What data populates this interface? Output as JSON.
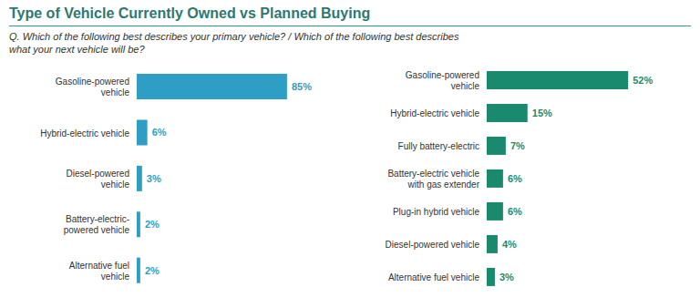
{
  "title": "Type of Vehicle Currently Owned vs Planned Buying",
  "subtitle": "Q. Which of the following best describes your primary vehicle? / Which of the following best describes\nwhat your next vehicle will be?",
  "chart_data": [
    {
      "type": "bar",
      "orientation": "horizontal",
      "categories": [
        "Gasoline-powered\nvehicle",
        "Hybrid-electric vehicle",
        "Diesel-powered\nvehicle",
        "Battery-electric-\npowered vehicle",
        "Alternative fuel\nvehicle"
      ],
      "values": [
        85,
        6,
        3,
        2,
        2
      ],
      "value_labels": [
        "85%",
        "6%",
        "3%",
        "2%",
        "2%"
      ],
      "color": "#2E9EC4",
      "xlim": [
        0,
        100
      ],
      "data_labels": true,
      "tick_labels": "y",
      "grid": false
    },
    {
      "type": "bar",
      "orientation": "horizontal",
      "categories": [
        "Gasoline-powered\nvehicle",
        "Hybrid-electric vehicle",
        "Fully battery-electric",
        "Battery-electric vehicle\nwith gas extender",
        "Plug-in hybrid vehicle",
        "Diesel-powered vehicle",
        "Alternative fuel vehicle"
      ],
      "values": [
        52,
        15,
        7,
        6,
        6,
        4,
        3
      ],
      "value_labels": [
        "52%",
        "15%",
        "7%",
        "6%",
        "6%",
        "4%",
        "3%"
      ],
      "color": "#1A8A6E",
      "xlim": [
        0,
        65
      ],
      "data_labels": true,
      "tick_labels": "y",
      "grid": false
    }
  ]
}
